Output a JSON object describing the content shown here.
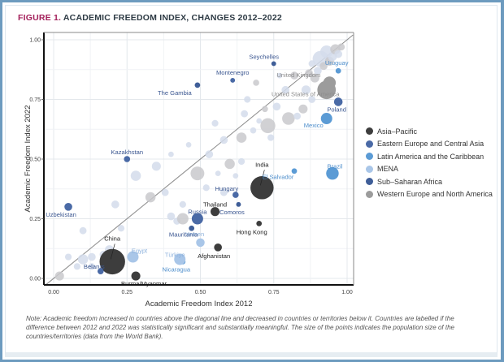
{
  "figure": {
    "title_prefix": "FIGURE 1.",
    "title_text": "ACADEMIC FREEDOM INDEX, CHANGES 2012–2022",
    "note": "Note: Academic freedom increased in countries above the diagonal line and decreased in countries or territories below it. Countries are labelled if the difference between 2012 and 2022 was statistically significant and substantially meaningful. The size of the points indicates the population size of the countries/territories (data from the World Bank)."
  },
  "colors": {
    "Asia–Pacific": "#3d3d3d",
    "Eastern Europe and Central Asia": "#4a6aa6",
    "Latin America and the Caribbean": "#5b9bd5",
    "MENA": "#a9c6e8",
    "Sub–Saharan Africa": "#3f5e98",
    "Western Europe and North America": "#9c9c9c"
  },
  "chart_data": {
    "type": "scatter",
    "title": "Academic Freedom Index, changes 2012–2022",
    "xlabel": "Academic Freedom Index 2012",
    "ylabel": "Academic Freedom Index 2022",
    "xlim": [
      -0.03,
      1.02
    ],
    "ylim": [
      -0.03,
      1.02
    ],
    "xticks": [
      "0.00",
      "0.25",
      "0.50",
      "0.75",
      "1.00"
    ],
    "yticks": [
      "0.00",
      "0.25",
      "0.50",
      "0.75",
      "1.00"
    ],
    "grid": true,
    "reference_line": "y = x diagonal",
    "legend_position": "right",
    "legend": [
      "Asia–Pacific",
      "Eastern Europe and Central Asia",
      "Latin America and the Caribbean",
      "MENA",
      "Sub–Saharan Africa",
      "Western Europe and North America"
    ],
    "labelled_points": [
      {
        "name": "China",
        "x": 0.2,
        "y": 0.07,
        "region": "Asia–Pacific",
        "size": 10
      },
      {
        "name": "India",
        "x": 0.71,
        "y": 0.38,
        "region": "Asia–Pacific",
        "size": 9
      },
      {
        "name": "Burma/Myanmar",
        "x": 0.28,
        "y": 0.01,
        "region": "Asia–Pacific",
        "size": 3
      },
      {
        "name": "Thailand",
        "x": 0.55,
        "y": 0.28,
        "region": "Asia–Pacific",
        "size": 3
      },
      {
        "name": "Hong Kong",
        "x": 0.7,
        "y": 0.23,
        "region": "Asia–Pacific",
        "size": 1.5
      },
      {
        "name": "Afghanistan",
        "x": 0.56,
        "y": 0.13,
        "region": "Asia–Pacific",
        "size": 2.5
      },
      {
        "name": "Russia",
        "x": 0.49,
        "y": 0.25,
        "region": "Eastern Europe and Central Asia",
        "size": 4
      },
      {
        "name": "Kazakhstan",
        "x": 0.25,
        "y": 0.5,
        "region": "Eastern Europe and Central Asia",
        "size": 1.8
      },
      {
        "name": "Uzbekistan",
        "x": 0.05,
        "y": 0.3,
        "region": "Eastern Europe and Central Asia",
        "size": 2.5
      },
      {
        "name": "Belarus",
        "x": 0.16,
        "y": 0.03,
        "region": "Eastern Europe and Central Asia",
        "size": 1.8
      },
      {
        "name": "Hungary",
        "x": 0.62,
        "y": 0.35,
        "region": "Eastern Europe and Central Asia",
        "size": 1.8
      },
      {
        "name": "Montenegro",
        "x": 0.61,
        "y": 0.83,
        "region": "Eastern Europe and Central Asia",
        "size": 1.2
      },
      {
        "name": "Poland",
        "x": 0.97,
        "y": 0.74,
        "region": "Eastern Europe and Central Asia",
        "size": 2.8
      },
      {
        "name": "Brazil",
        "x": 0.95,
        "y": 0.44,
        "region": "Latin America and the Caribbean",
        "size": 4.5
      },
      {
        "name": "Mexico",
        "x": 0.93,
        "y": 0.67,
        "region": "Latin America and the Caribbean",
        "size": 4
      },
      {
        "name": "El Salvador",
        "x": 0.82,
        "y": 0.45,
        "region": "Latin America and the Caribbean",
        "size": 1.5
      },
      {
        "name": "Nicaragua",
        "x": 0.44,
        "y": 0.07,
        "region": "Latin America and the Caribbean",
        "size": 1.5
      },
      {
        "name": "Uruguay",
        "x": 0.97,
        "y": 0.87,
        "region": "Latin America and the Caribbean",
        "size": 1.5
      },
      {
        "name": "Egypt",
        "x": 0.27,
        "y": 0.09,
        "region": "MENA",
        "size": 4
      },
      {
        "name": "Türkiye",
        "x": 0.43,
        "y": 0.08,
        "region": "MENA",
        "size": 4
      },
      {
        "name": "Yemen",
        "x": 0.5,
        "y": 0.15,
        "region": "MENA",
        "size": 2.8
      },
      {
        "name": "Mauritania",
        "x": 0.47,
        "y": 0.21,
        "region": "Sub–Saharan Africa",
        "size": 1.5
      },
      {
        "name": "Comoros",
        "x": 0.63,
        "y": 0.31,
        "region": "Sub–Saharan Africa",
        "size": 1.2
      },
      {
        "name": "The Gambia",
        "x": 0.49,
        "y": 0.81,
        "region": "Sub–Saharan Africa",
        "size": 1.5
      },
      {
        "name": "Seychelles",
        "x": 0.75,
        "y": 0.9,
        "region": "Sub–Saharan Africa",
        "size": 1.2
      },
      {
        "name": "United Kingdom",
        "x": 0.94,
        "y": 0.82,
        "region": "Western Europe and North America",
        "size": 4.5
      },
      {
        "name": "United States of America",
        "x": 0.93,
        "y": 0.79,
        "region": "Western Europe and North America",
        "size": 7
      }
    ],
    "unlabelled_points": [
      {
        "x": 0.02,
        "y": 0.01,
        "region": "Western Europe and North America",
        "size": 3
      },
      {
        "x": 0.05,
        "y": 0.09,
        "region": "MENA",
        "size": 2
      },
      {
        "x": 0.08,
        "y": 0.05,
        "region": "MENA",
        "size": 2
      },
      {
        "x": 0.1,
        "y": 0.08,
        "region": "MENA",
        "size": 3.5
      },
      {
        "x": 0.13,
        "y": 0.09,
        "region": "MENA",
        "size": 2.5
      },
      {
        "x": 0.1,
        "y": 0.2,
        "region": "MENA",
        "size": 2.2
      },
      {
        "x": 0.13,
        "y": 0.05,
        "region": "MENA",
        "size": 2
      },
      {
        "x": 0.17,
        "y": 0.1,
        "region": "MENA",
        "size": 2.5
      },
      {
        "x": 0.19,
        "y": 0.12,
        "region": "MENA",
        "size": 3
      },
      {
        "x": 0.21,
        "y": 0.31,
        "region": "MENA",
        "size": 2.5
      },
      {
        "x": 0.23,
        "y": 0.21,
        "region": "MENA",
        "size": 2
      },
      {
        "x": 0.28,
        "y": 0.43,
        "region": "MENA",
        "size": 3.5
      },
      {
        "x": 0.33,
        "y": 0.34,
        "region": "Western Europe and North America",
        "size": 3.5
      },
      {
        "x": 0.35,
        "y": 0.47,
        "region": "MENA",
        "size": 3
      },
      {
        "x": 0.38,
        "y": 0.36,
        "region": "MENA",
        "size": 2.2
      },
      {
        "x": 0.4,
        "y": 0.26,
        "region": "MENA",
        "size": 2.5
      },
      {
        "x": 0.42,
        "y": 0.24,
        "region": "MENA",
        "size": 2.2
      },
      {
        "x": 0.44,
        "y": 0.25,
        "region": "Western Europe and North America",
        "size": 4
      },
      {
        "x": 0.44,
        "y": 0.31,
        "region": "MENA",
        "size": 2
      },
      {
        "x": 0.49,
        "y": 0.44,
        "region": "Western Europe and North America",
        "size": 5
      },
      {
        "x": 0.52,
        "y": 0.38,
        "region": "MENA",
        "size": 2
      },
      {
        "x": 0.53,
        "y": 0.52,
        "region": "MENA",
        "size": 2.5
      },
      {
        "x": 0.56,
        "y": 0.44,
        "region": "MENA",
        "size": 1.5
      },
      {
        "x": 0.58,
        "y": 0.58,
        "region": "MENA",
        "size": 2.5
      },
      {
        "x": 0.58,
        "y": 0.36,
        "region": "MENA",
        "size": 2.2
      },
      {
        "x": 0.6,
        "y": 0.48,
        "region": "Western Europe and North America",
        "size": 3.5
      },
      {
        "x": 0.62,
        "y": 0.43,
        "region": "MENA",
        "size": 1.5
      },
      {
        "x": 0.64,
        "y": 0.49,
        "region": "MENA",
        "size": 2
      },
      {
        "x": 0.64,
        "y": 0.59,
        "region": "Western Europe and North America",
        "size": 3.5
      },
      {
        "x": 0.65,
        "y": 0.69,
        "region": "MENA",
        "size": 2.2
      },
      {
        "x": 0.68,
        "y": 0.62,
        "region": "MENA",
        "size": 1.8
      },
      {
        "x": 0.7,
        "y": 0.66,
        "region": "MENA",
        "size": 1.5
      },
      {
        "x": 0.72,
        "y": 0.71,
        "region": "Western Europe and North America",
        "size": 1.8
      },
      {
        "x": 0.73,
        "y": 0.64,
        "region": "Western Europe and North America",
        "size": 5.5
      },
      {
        "x": 0.74,
        "y": 0.59,
        "region": "MENA",
        "size": 2
      },
      {
        "x": 0.76,
        "y": 0.72,
        "region": "MENA",
        "size": 2.5
      },
      {
        "x": 0.79,
        "y": 0.79,
        "region": "MENA",
        "size": 2.5
      },
      {
        "x": 0.8,
        "y": 0.67,
        "region": "Western Europe and North America",
        "size": 4.5
      },
      {
        "x": 0.82,
        "y": 0.85,
        "region": "Western Europe and North America",
        "size": 2.5
      },
      {
        "x": 0.83,
        "y": 0.68,
        "region": "MENA",
        "size": 2.2
      },
      {
        "x": 0.85,
        "y": 0.71,
        "region": "Western Europe and North America",
        "size": 3
      },
      {
        "x": 0.86,
        "y": 0.79,
        "region": "MENA",
        "size": 3
      },
      {
        "x": 0.87,
        "y": 0.86,
        "region": "Western Europe and North America",
        "size": 2.5
      },
      {
        "x": 0.88,
        "y": 0.9,
        "region": "MENA",
        "size": 2
      },
      {
        "x": 0.89,
        "y": 0.84,
        "region": "Western Europe and North America",
        "size": 3
      },
      {
        "x": 0.9,
        "y": 0.87,
        "region": "MENA",
        "size": 2.5
      },
      {
        "x": 0.91,
        "y": 0.92,
        "region": "MENA",
        "size": 6
      },
      {
        "x": 0.92,
        "y": 0.89,
        "region": "Western Europe and North America",
        "size": 2.5
      },
      {
        "x": 0.93,
        "y": 0.95,
        "region": "MENA",
        "size": 4.5
      },
      {
        "x": 0.94,
        "y": 0.91,
        "region": "Western Europe and North America",
        "size": 3
      },
      {
        "x": 0.95,
        "y": 0.93,
        "region": "MENA",
        "size": 3
      },
      {
        "x": 0.96,
        "y": 0.96,
        "region": "Western Europe and North America",
        "size": 3.5
      },
      {
        "x": 0.97,
        "y": 0.94,
        "region": "MENA",
        "size": 2.5
      },
      {
        "x": 0.98,
        "y": 0.97,
        "region": "Western Europe and North America",
        "size": 2.2
      },
      {
        "x": 0.88,
        "y": 0.75,
        "region": "MENA",
        "size": 2.2
      },
      {
        "x": 0.77,
        "y": 0.85,
        "region": "MENA",
        "size": 1.5
      },
      {
        "x": 0.66,
        "y": 0.75,
        "region": "MENA",
        "size": 2
      },
      {
        "x": 0.69,
        "y": 0.82,
        "region": "Western Europe and North America",
        "size": 1.8
      },
      {
        "x": 0.55,
        "y": 0.65,
        "region": "MENA",
        "size": 2
      },
      {
        "x": 0.46,
        "y": 0.56,
        "region": "MENA",
        "size": 1.5
      },
      {
        "x": 0.4,
        "y": 0.52,
        "region": "MENA",
        "size": 1.5
      }
    ]
  }
}
